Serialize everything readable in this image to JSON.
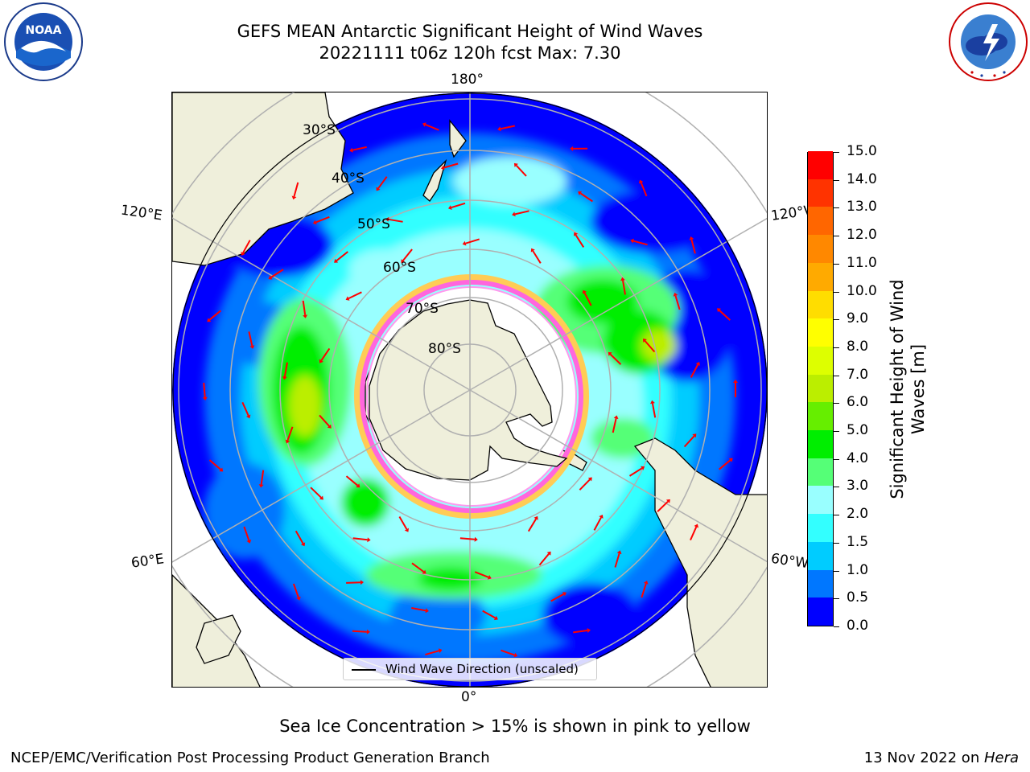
{
  "header": {
    "title_line1": "GEFS MEAN Antarctic Significant Height of Wind Waves",
    "title_line2": "20221111 t06z 120h fcst   Max: 7.30"
  },
  "logos": {
    "left": "NOAA",
    "left_ring_text": "NATIONAL OCEANIC AND ATMOSPHERIC ADMINISTRATION · U.S. DEPARTMENT OF COMMERCE",
    "right_ring_text": "NATIONAL WEATHER SERVICE"
  },
  "map": {
    "projection": "south-polar-stereographic",
    "lon_labels": {
      "top": "180°",
      "bottom": "0°",
      "upper_left": "120°E",
      "lower_left": "60°E",
      "upper_right": "120°W",
      "lower_right": "60°W"
    },
    "lat_labels": [
      "30°S",
      "40°S",
      "50°S",
      "60°S",
      "70°S",
      "80°S"
    ],
    "legend_text": "Wind Wave Direction (unscaled)",
    "colors": {
      "land": "#efefdb",
      "ice_edge_pink": "#ff66dd",
      "ice_edge_yellow": "#ffcc55",
      "arrows": "#ff0000",
      "grid": "#b0b0b0"
    }
  },
  "colorbar": {
    "title": "Significant Height of Wind Waves [m]",
    "ticks": [
      "0.0",
      "0.5",
      "1.0",
      "1.5",
      "2.0",
      "3.0",
      "4.0",
      "5.0",
      "6.0",
      "7.0",
      "8.0",
      "9.0",
      "10.0",
      "11.0",
      "12.0",
      "13.0",
      "14.0",
      "15.0"
    ],
    "colors": [
      "#0000ff",
      "#0077ff",
      "#00ccff",
      "#33ffff",
      "#99ffff",
      "#55ff77",
      "#00ee00",
      "#66ee00",
      "#bbee00",
      "#ddff00",
      "#ffff00",
      "#ffdd00",
      "#ffaa00",
      "#ff8800",
      "#ff6600",
      "#ff3300",
      "#ff0000"
    ]
  },
  "footer": {
    "note": "Sea Ice Concentration > 15% is shown in pink to yellow",
    "credit_left": "NCEP/EMC/Verification Post Processing Product Generation Branch",
    "credit_right_prefix": "13 Nov 2022 on ",
    "credit_right_host": "Hera"
  }
}
